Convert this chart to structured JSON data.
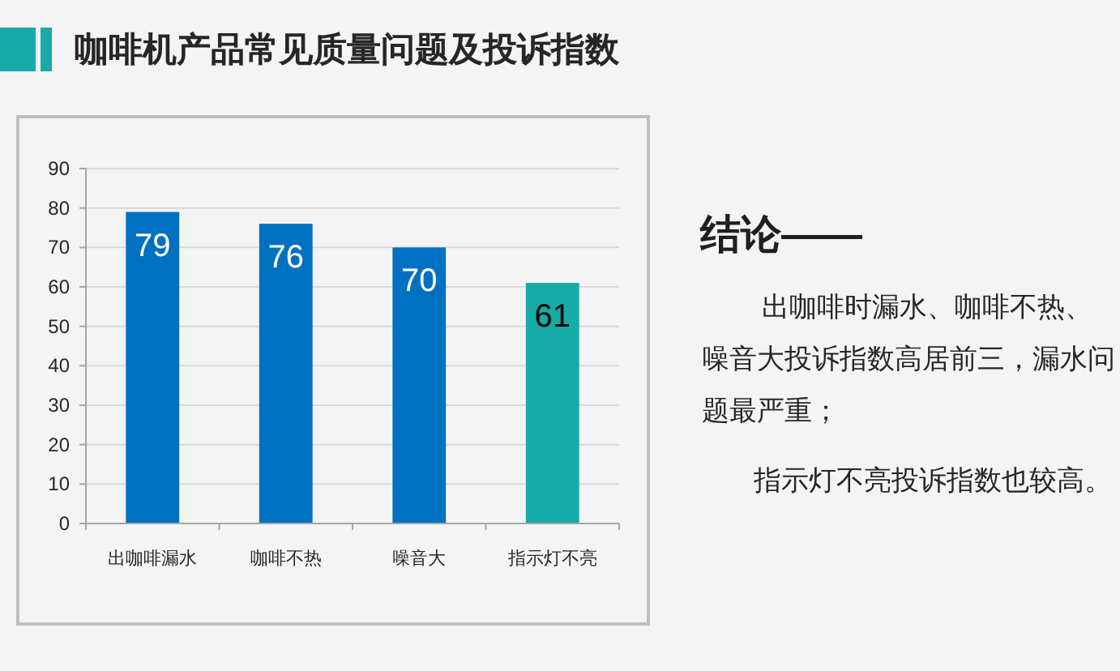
{
  "chart_data": {
    "type": "bar",
    "title": "咖啡机产品常见质量问题及投诉指数",
    "annotations": [
      "结论——",
      "出咖啡时漏水、咖啡不热、噪音大投诉指数高居前三，漏水问题最严重；",
      "指示灯不亮投诉指数也较高。"
    ],
    "categories": [
      "出咖啡漏水",
      "咖啡不热",
      "噪音大",
      "指示灯不亮"
    ],
    "values": [
      79,
      76,
      70,
      61
    ],
    "colors": [
      "#0070c0",
      "#0070c0",
      "#0070c0",
      "#17aaa6"
    ],
    "ylim": [
      0,
      90
    ],
    "yticks": [
      0,
      10,
      20,
      30,
      40,
      50,
      60,
      70,
      80,
      90
    ],
    "grid": "y",
    "data_labels": true
  }
}
